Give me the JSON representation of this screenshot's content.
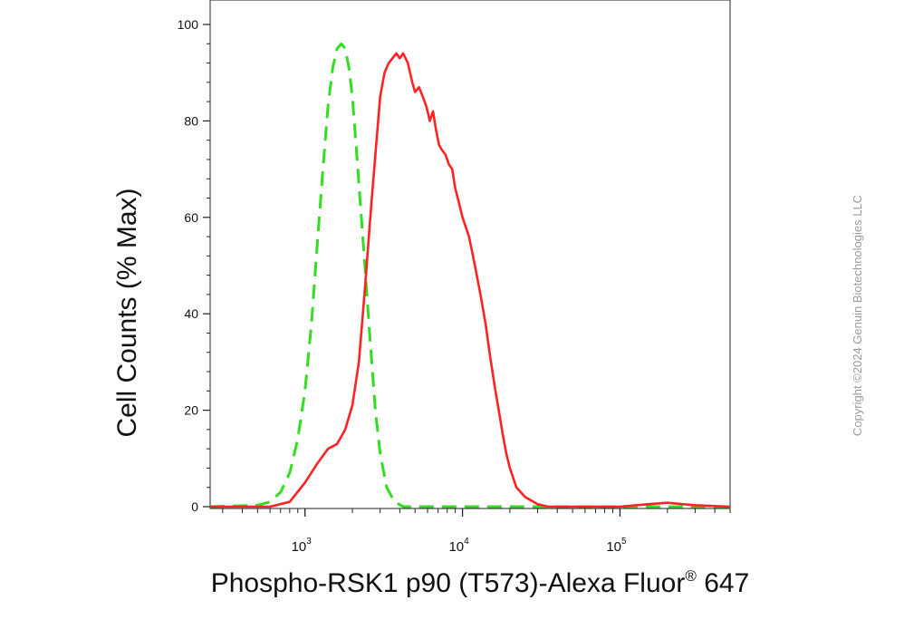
{
  "chart_data": {
    "type": "line",
    "xlabel": "Phospho-RSK1 p90 (T573)-Alexa Fluor",
    "xlabel_superscript": "®",
    "xlabel_suffix": "647",
    "ylabel": "Cell Counts (% Max)",
    "x_scale": "log",
    "xlim": [
      250,
      500000
    ],
    "ylim": [
      0,
      100
    ],
    "y_ticks": [
      0,
      20,
      40,
      60,
      80,
      100
    ],
    "x_ticks": [
      {
        "value": 1000,
        "base": "10",
        "exp": "3"
      },
      {
        "value": 10000,
        "base": "10",
        "exp": "4"
      },
      {
        "value": 100000,
        "base": "10",
        "exp": "5"
      }
    ],
    "grid": false,
    "legend": "none",
    "series": [
      {
        "color": "#33dd22",
        "dash": true,
        "x": [
          250,
          500,
          600,
          700,
          800,
          900,
          1000,
          1100,
          1200,
          1300,
          1400,
          1500,
          1600,
          1700,
          1800,
          1900,
          2000,
          2100,
          2200,
          2400,
          2600,
          2800,
          3000,
          3300,
          3700,
          4200,
          5000,
          10000,
          500000
        ],
        "y": [
          0,
          0.3,
          1,
          3,
          7,
          14,
          24,
          38,
          55,
          70,
          83,
          91,
          95,
          96,
          95,
          91,
          85,
          76,
          67,
          50,
          34,
          20,
          11,
          4,
          1,
          0,
          0,
          0,
          0
        ]
      },
      {
        "color": "#ff2222",
        "dash": false,
        "x": [
          250,
          600,
          800,
          1000,
          1200,
          1400,
          1600,
          1800,
          2000,
          2200,
          2400,
          2600,
          2800,
          3000,
          3200,
          3400,
          3600,
          3800,
          4000,
          4200,
          4500,
          4800,
          5000,
          5300,
          5600,
          5900,
          6200,
          6500,
          6800,
          7100,
          7400,
          7800,
          8200,
          8600,
          9000,
          9500,
          10000,
          11000,
          12000,
          13000,
          14000,
          15000,
          16000,
          17000,
          18000,
          19000,
          20000,
          22000,
          25000,
          30000,
          35000,
          40000,
          60000,
          100000,
          150000,
          200000,
          300000,
          500000
        ],
        "y": [
          0,
          0,
          1,
          5,
          9,
          12,
          13,
          16,
          21,
          30,
          45,
          60,
          73,
          85,
          90,
          92,
          93,
          94,
          93,
          94,
          92,
          88,
          86,
          87,
          85,
          83,
          80,
          82,
          78,
          75,
          74,
          73,
          71,
          70,
          66,
          63,
          60,
          56,
          50,
          44,
          38,
          31,
          25,
          20,
          15,
          11,
          8,
          4,
          2,
          0.5,
          0,
          0,
          0,
          0,
          0.5,
          0.8,
          0.3,
          0
        ]
      }
    ]
  },
  "copyright": "Copyright ©2024 Genuin Biotechnologies LLC"
}
